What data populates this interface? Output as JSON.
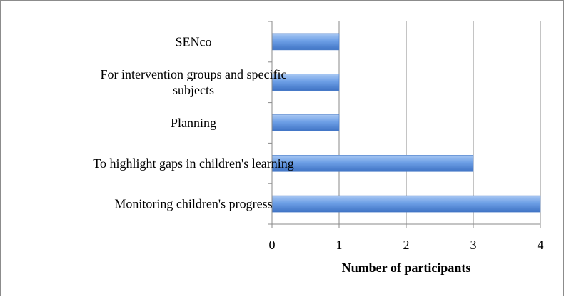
{
  "chart_data": {
    "type": "bar",
    "orientation": "horizontal",
    "categories": [
      [
        "SENco"
      ],
      [
        "For intervention groups and specific",
        "subjects"
      ],
      [
        "Planning"
      ],
      [
        "To highlight gaps in children's learning"
      ],
      [
        "Monitoring children's progress"
      ]
    ],
    "values": [
      1,
      1,
      1,
      3,
      4
    ],
    "xlabel": "Number of participants",
    "ylabel": "",
    "xlim": [
      0,
      4
    ],
    "xticks": [
      "0",
      "1",
      "2",
      "3",
      "4"
    ],
    "grid": "vertical",
    "legend": "none",
    "bar_color": "#5b8ed8"
  }
}
